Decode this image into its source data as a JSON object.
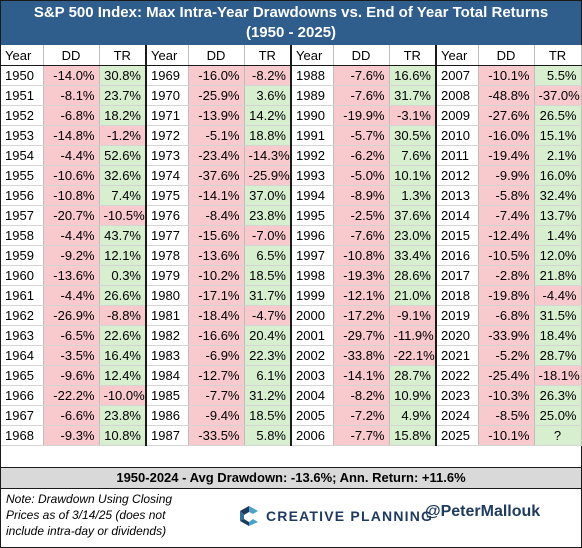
{
  "title_line1": "S&P 500 Index: Max Intra-Year Drawdowns vs. End of Year Total Returns",
  "title_line2": "(1950 - 2025)",
  "headers": {
    "year": "Year",
    "dd": "DD",
    "tr": "TR"
  },
  "chart_data": {
    "type": "table",
    "columns": [
      "Year",
      "DD",
      "TR"
    ],
    "rows": [
      [
        "1950",
        "-14.0%",
        "30.8%"
      ],
      [
        "1951",
        "-8.1%",
        "23.7%"
      ],
      [
        "1952",
        "-6.8%",
        "18.2%"
      ],
      [
        "1953",
        "-14.8%",
        "-1.2%"
      ],
      [
        "1954",
        "-4.4%",
        "52.6%"
      ],
      [
        "1955",
        "-10.6%",
        "32.6%"
      ],
      [
        "1956",
        "-10.8%",
        "7.4%"
      ],
      [
        "1957",
        "-20.7%",
        "-10.5%"
      ],
      [
        "1958",
        "-4.4%",
        "43.7%"
      ],
      [
        "1959",
        "-9.2%",
        "12.1%"
      ],
      [
        "1960",
        "-13.6%",
        "0.3%"
      ],
      [
        "1961",
        "-4.4%",
        "26.6%"
      ],
      [
        "1962",
        "-26.9%",
        "-8.8%"
      ],
      [
        "1963",
        "-6.5%",
        "22.6%"
      ],
      [
        "1964",
        "-3.5%",
        "16.4%"
      ],
      [
        "1965",
        "-9.6%",
        "12.4%"
      ],
      [
        "1966",
        "-22.2%",
        "-10.0%"
      ],
      [
        "1967",
        "-6.6%",
        "23.8%"
      ],
      [
        "1968",
        "-9.3%",
        "10.8%"
      ],
      [
        "1969",
        "-16.0%",
        "-8.2%"
      ],
      [
        "1970",
        "-25.9%",
        "3.6%"
      ],
      [
        "1971",
        "-13.9%",
        "14.2%"
      ],
      [
        "1972",
        "-5.1%",
        "18.8%"
      ],
      [
        "1973",
        "-23.4%",
        "-14.3%"
      ],
      [
        "1974",
        "-37.6%",
        "-25.9%"
      ],
      [
        "1975",
        "-14.1%",
        "37.0%"
      ],
      [
        "1976",
        "-8.4%",
        "23.8%"
      ],
      [
        "1977",
        "-15.6%",
        "-7.0%"
      ],
      [
        "1978",
        "-13.6%",
        "6.5%"
      ],
      [
        "1979",
        "-10.2%",
        "18.5%"
      ],
      [
        "1980",
        "-17.1%",
        "31.7%"
      ],
      [
        "1981",
        "-18.4%",
        "-4.7%"
      ],
      [
        "1982",
        "-16.6%",
        "20.4%"
      ],
      [
        "1983",
        "-6.9%",
        "22.3%"
      ],
      [
        "1984",
        "-12.7%",
        "6.1%"
      ],
      [
        "1985",
        "-7.7%",
        "31.2%"
      ],
      [
        "1986",
        "-9.4%",
        "18.5%"
      ],
      [
        "1987",
        "-33.5%",
        "5.8%"
      ],
      [
        "1988",
        "-7.6%",
        "16.6%"
      ],
      [
        "1989",
        "-7.6%",
        "31.7%"
      ],
      [
        "1990",
        "-19.9%",
        "-3.1%"
      ],
      [
        "1991",
        "-5.7%",
        "30.5%"
      ],
      [
        "1992",
        "-6.2%",
        "7.6%"
      ],
      [
        "1993",
        "-5.0%",
        "10.1%"
      ],
      [
        "1994",
        "-8.9%",
        "1.3%"
      ],
      [
        "1995",
        "-2.5%",
        "37.6%"
      ],
      [
        "1996",
        "-7.6%",
        "23.0%"
      ],
      [
        "1997",
        "-10.8%",
        "33.4%"
      ],
      [
        "1998",
        "-19.3%",
        "28.6%"
      ],
      [
        "1999",
        "-12.1%",
        "21.0%"
      ],
      [
        "2000",
        "-17.2%",
        "-9.1%"
      ],
      [
        "2001",
        "-29.7%",
        "-11.9%"
      ],
      [
        "2002",
        "-33.8%",
        "-22.1%"
      ],
      [
        "2003",
        "-14.1%",
        "28.7%"
      ],
      [
        "2004",
        "-8.2%",
        "10.9%"
      ],
      [
        "2005",
        "-7.2%",
        "4.9%"
      ],
      [
        "2006",
        "-7.7%",
        "15.8%"
      ],
      [
        "2007",
        "-10.1%",
        "5.5%"
      ],
      [
        "2008",
        "-48.8%",
        "-37.0%"
      ],
      [
        "2009",
        "-27.6%",
        "26.5%"
      ],
      [
        "2010",
        "-16.0%",
        "15.1%"
      ],
      [
        "2011",
        "-19.4%",
        "2.1%"
      ],
      [
        "2012",
        "-9.9%",
        "16.0%"
      ],
      [
        "2013",
        "-5.8%",
        "32.4%"
      ],
      [
        "2014",
        "-7.4%",
        "13.7%"
      ],
      [
        "2015",
        "-12.4%",
        "1.4%"
      ],
      [
        "2016",
        "-10.5%",
        "12.0%"
      ],
      [
        "2017",
        "-2.8%",
        "21.8%"
      ],
      [
        "2018",
        "-19.8%",
        "-4.4%"
      ],
      [
        "2019",
        "-6.8%",
        "31.5%"
      ],
      [
        "2020",
        "-33.9%",
        "18.4%"
      ],
      [
        "2021",
        "-5.2%",
        "28.7%"
      ],
      [
        "2022",
        "-25.4%",
        "-18.1%"
      ],
      [
        "2023",
        "-10.3%",
        "26.3%"
      ],
      [
        "2024",
        "-8.5%",
        "25.0%"
      ],
      [
        "2025",
        "-10.1%",
        "?"
      ]
    ]
  },
  "summary": "1950-2024 - Avg Drawdown: -13.6%; Ann. Return: +11.6%",
  "note": "Note: Drawdown Using Closing Prices as of 3/14/25 (does not include intra-day or dividends)",
  "brand_name": "CREATIVE PLANNING",
  "handle": "@PeterMallouk",
  "colors": {
    "title_bg": "#2f5d8c",
    "negative": "#f8c9cd",
    "positive": "#d7efcf",
    "summary_bg": "#d9d9d9",
    "brand": "#1f3a5f"
  }
}
